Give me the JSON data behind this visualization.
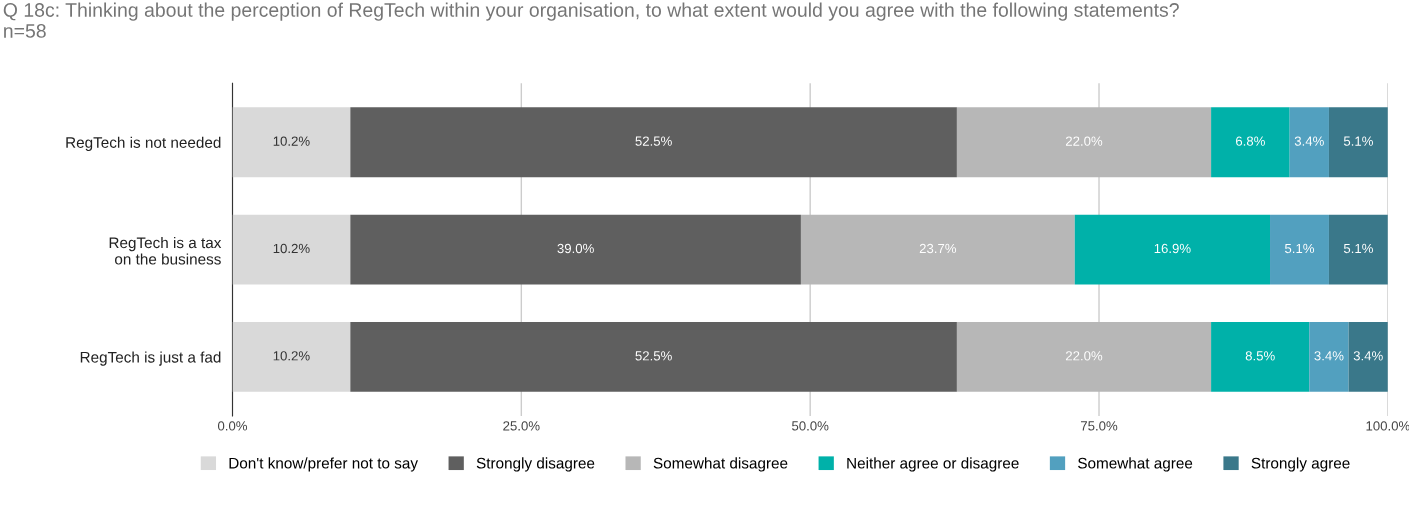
{
  "chart_data": {
    "type": "bar",
    "orientation": "horizontal",
    "stacked": true,
    "title": "Q 18c: Thinking about the perception of RegTech within your organisation, to what extent would you agree with the following statements?\nn=58",
    "categories": [
      "RegTech is not needed",
      "RegTech is a tax\non the business",
      "RegTech is just a fad"
    ],
    "series": [
      {
        "name": "Don't know/prefer not to say",
        "color": "#d9d9d9",
        "values": [
          10.2,
          10.2,
          10.2
        ],
        "value_labels": [
          "10.2%",
          "10.2%",
          "10.2%"
        ]
      },
      {
        "name": "Strongly disagree",
        "color": "#5f5f5f",
        "values": [
          52.5,
          39.0,
          52.5
        ],
        "value_labels": [
          "52.5%",
          "39.0%",
          "52.5%"
        ]
      },
      {
        "name": "Somewhat disagree",
        "color": "#b7b7b7",
        "values": [
          22.0,
          23.7,
          22.0
        ],
        "value_labels": [
          "22.0%",
          "23.7%",
          "22.0%"
        ]
      },
      {
        "name": "Neither agree or disagree",
        "color": "#00b1a9",
        "values": [
          6.8,
          16.9,
          8.5
        ],
        "value_labels": [
          "6.8%",
          "16.9%",
          "8.5%"
        ]
      },
      {
        "name": "Somewhat agree",
        "color": "#52a0bf",
        "values": [
          3.4,
          5.1,
          3.4
        ],
        "value_labels": [
          "3.4%",
          "5.1%",
          "3.4%"
        ]
      },
      {
        "name": "Strongly agree",
        "color": "#3a788a",
        "values": [
          5.1,
          5.1,
          3.4
        ],
        "value_labels": [
          "5.1%",
          "5.1%",
          "3.4%"
        ]
      }
    ],
    "xlim": [
      0,
      100
    ],
    "xticks": [
      {
        "value": 0,
        "label": "0.0%"
      },
      {
        "value": 25,
        "label": "25.0%"
      },
      {
        "value": 50,
        "label": "50.0%"
      },
      {
        "value": 75,
        "label": "75.0%"
      },
      {
        "value": 100,
        "label": "100.0%"
      }
    ],
    "grid": "x",
    "legend": "bottom"
  }
}
